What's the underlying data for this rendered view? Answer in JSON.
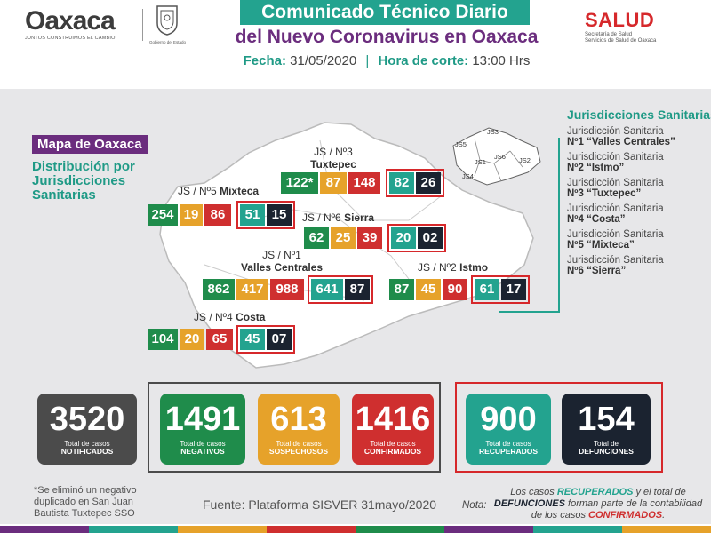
{
  "header": {
    "logo_word": "Oaxaca",
    "logo_slogan": "JUNTOS CONSTRUIMOS EL CAMBIO",
    "gob_text": "Gobierno del Estado",
    "title_line1": "Comunicado Técnico Diario",
    "title_line2": "del Nuevo Coronavirus en Oaxaca",
    "fecha_label": "Fecha:",
    "fecha_value": "31/05/2020",
    "hora_label": "Hora de corte:",
    "hora_value": "13:00 Hrs",
    "salud_word": "SALUD",
    "salud_sub1": "Secretaría de Salud",
    "salud_sub2": "Servicios de Salud de Oaxaca"
  },
  "map": {
    "badge": "Mapa de Oaxaca",
    "subtitle": "Distribución por Jurisdicciones Sanitarias",
    "jurisdictions": [
      {
        "id": "js3",
        "label1": "JS / Nº3",
        "label2": "Tuxtepec",
        "values": [
          "122*",
          "87",
          "148",
          "82",
          "26"
        ]
      },
      {
        "id": "js5",
        "label1": "JS / Nº5",
        "label2": "Mixteca",
        "values": [
          "254",
          "19",
          "86",
          "51",
          "15"
        ]
      },
      {
        "id": "js6",
        "label1": "JS / Nº6",
        "label2": "Sierra",
        "values": [
          "62",
          "25",
          "39",
          "20",
          "02"
        ]
      },
      {
        "id": "js1",
        "label1": "JS / Nº1",
        "label2": "Valles Centrales",
        "values": [
          "862",
          "417",
          "988",
          "641",
          "87"
        ]
      },
      {
        "id": "js2",
        "label1": "JS / Nº2",
        "label2": "Istmo",
        "values": [
          "87",
          "45",
          "90",
          "61",
          "17"
        ]
      },
      {
        "id": "js4",
        "label1": "JS / Nº4",
        "label2": "Costa",
        "values": [
          "104",
          "20",
          "65",
          "45",
          "07"
        ]
      }
    ],
    "mini_labels": [
      "JS3",
      "JS5",
      "JS1",
      "JS6",
      "JS2",
      "JS4"
    ]
  },
  "legend": {
    "title": "Jurisdicciones Sanitarias",
    "items": [
      {
        "line1": "Jurisdicción Sanitaria",
        "line2": "Nº1 “Valles Centrales”"
      },
      {
        "line1": "Jurisdicción Sanitaria",
        "line2": "Nº2 “Istmo”"
      },
      {
        "line1": "Jurisdicción Sanitaria",
        "line2": "Nº3 “Tuxtepec”"
      },
      {
        "line1": "Jurisdicción Sanitaria",
        "line2": "Nº4 “Costa”"
      },
      {
        "line1": "Jurisdicción Sanitaria",
        "line2": "Nº5 “Mixteca”"
      },
      {
        "line1": "Jurisdicción Sanitaria",
        "line2": "Nº6 “Sierra”"
      }
    ]
  },
  "totals": [
    {
      "id": "notificados",
      "value": "3520",
      "line1": "Total de casos",
      "line2": "NOTIFICADOS",
      "color": "#4b4b4b"
    },
    {
      "id": "negativos",
      "value": "1491",
      "line1": "Total de casos",
      "line2": "NEGATIVOS",
      "color": "#1f8c4b"
    },
    {
      "id": "sospechosos",
      "value": "613",
      "line1": "Total de casos",
      "line2": "SOSPECHOSOS",
      "color": "#e6a22a"
    },
    {
      "id": "confirmados",
      "value": "1416",
      "line1": "Total de casos",
      "line2": "CONFIRMADOS",
      "color": "#cf2f2f"
    },
    {
      "id": "recuperados",
      "value": "900",
      "line1": "Total de casos",
      "line2": "RECUPERADOS",
      "color": "#23a38f"
    },
    {
      "id": "defunciones",
      "value": "154",
      "line1": "Total de",
      "line2": "DEFUNCIONES",
      "color": "#1b2330"
    }
  ],
  "footer": {
    "footnote": "*Se eliminó un negativo duplicado en San Juan Bautista Tuxtepec SSO",
    "fuente": "Fuente: Plataforma SISVER 31mayo/2020",
    "nota_label": "Nota:",
    "nota_pre": "Los casos ",
    "nota_recuperados": "RECUPERADOS",
    "nota_mid1": " y el total de ",
    "nota_defunciones": "DEFUNCIONES",
    "nota_mid2": " forman parte de la contabilidad de los casos ",
    "nota_confirmados": "CONFIRMADOS",
    "nota_end": "."
  },
  "colors": {
    "negativos": "#1f8c4b",
    "sospechosos": "#e6a22a",
    "confirmados": "#cf2f2f",
    "recuperados": "#23a38f",
    "defunciones": "#1b2330",
    "notificados": "#4b4b4b",
    "title_purple": "#6b2d7e",
    "frame_red": "#d6282b"
  }
}
